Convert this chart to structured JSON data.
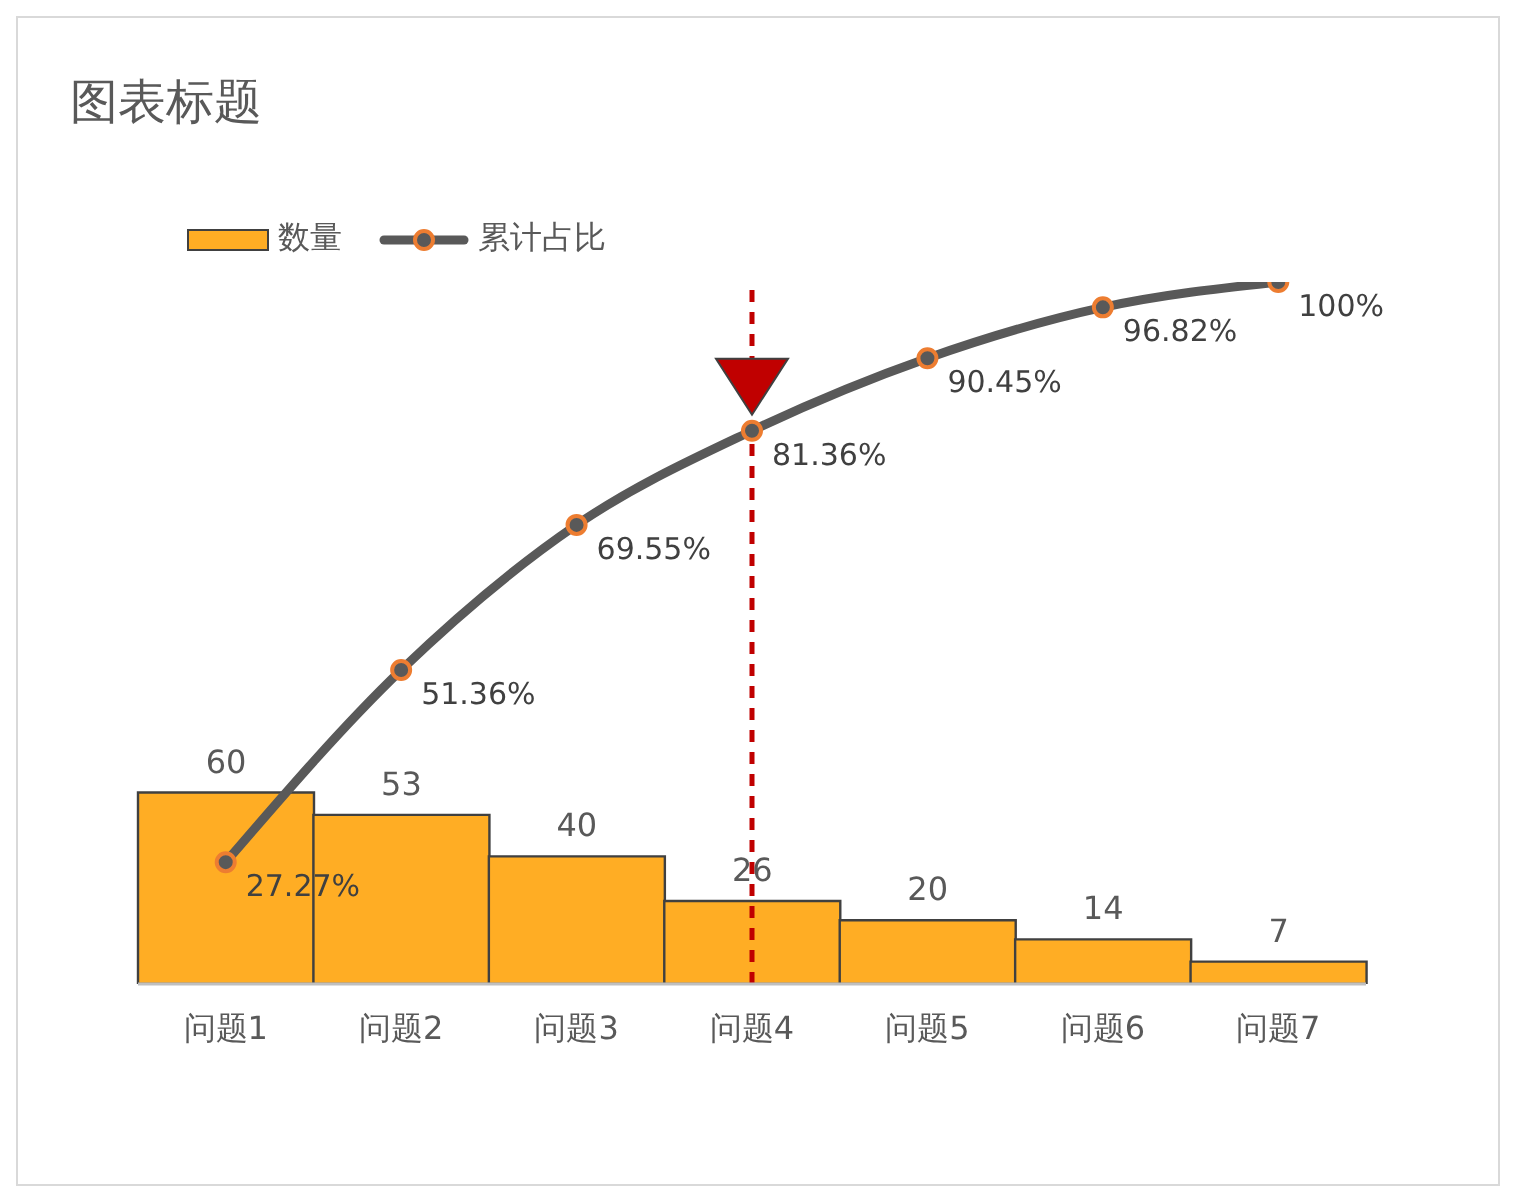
{
  "chart_data": {
    "type": "bar",
    "title": "图表标题",
    "categories": [
      "问题1",
      "问题2",
      "问题3",
      "问题4",
      "问题5",
      "问题6",
      "问题7"
    ],
    "series": [
      {
        "name": "数量",
        "color": "#ffad24",
        "values": [
          60,
          53,
          40,
          26,
          20,
          14,
          7
        ],
        "value_labels": [
          "60",
          "53",
          "40",
          "26",
          "20",
          "14",
          "7"
        ]
      },
      {
        "name": "累计占比",
        "type": "line",
        "axis": "y2",
        "color": "#595959",
        "values": [
          27.27,
          51.36,
          69.55,
          81.36,
          90.45,
          96.82,
          100
        ],
        "value_labels": [
          "27.27%",
          "51.36%",
          "69.55%",
          "81.36%",
          "90.45%",
          "96.82%",
          "100%"
        ]
      }
    ],
    "ylim": [
      0,
      220
    ],
    "tick_labels": "x",
    "legend": "top left",
    "marker": "circle",
    "ref_lines": [
      {
        "axis": "x",
        "value": "问题4",
        "color": "#c00000",
        "line_style": "dashed"
      }
    ]
  }
}
